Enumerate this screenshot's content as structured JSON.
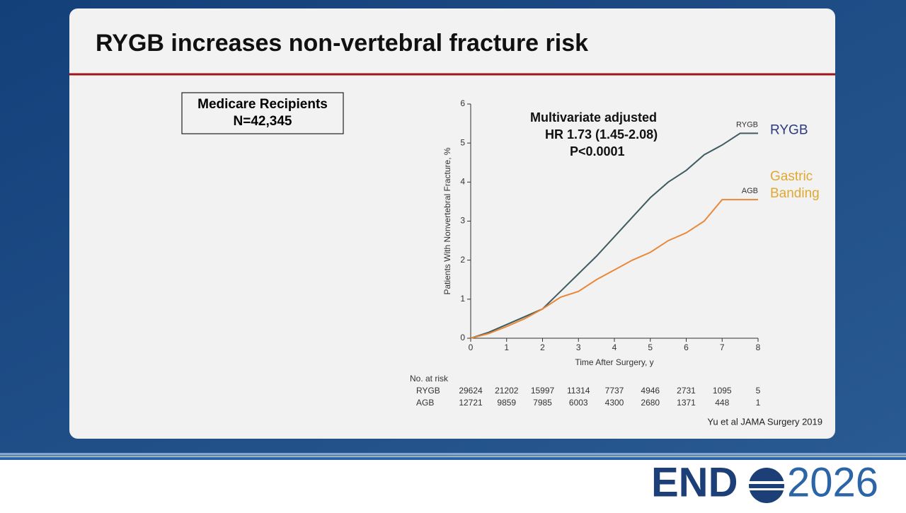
{
  "slide": {
    "title": "RYGB increases non-vertebral fracture risk",
    "box": [
      "Medicare Recipients",
      "N=42,345"
    ],
    "citation": "Yu et al JAMA Surgery 2019",
    "logo": {
      "left": "END",
      "right": "2026"
    }
  },
  "chart_data": {
    "type": "line",
    "x": [
      0,
      0.5,
      1,
      1.5,
      2,
      2.5,
      3,
      3.5,
      4,
      4.5,
      5,
      5.5,
      6,
      6.5,
      7,
      7.5,
      8
    ],
    "series": [
      {
        "name": "RYGB",
        "color": "#3f5c60",
        "values": [
          0,
          0.15,
          0.35,
          0.55,
          0.75,
          1.2,
          1.65,
          2.1,
          2.6,
          3.1,
          3.6,
          4.0,
          4.3,
          4.7,
          4.95,
          5.25,
          5.25
        ]
      },
      {
        "name": "AGB",
        "color": "#e8883a",
        "values": [
          0,
          0.12,
          0.3,
          0.5,
          0.75,
          1.05,
          1.2,
          1.5,
          1.75,
          2.0,
          2.2,
          2.5,
          2.7,
          3.0,
          3.55,
          3.55,
          3.55
        ]
      }
    ],
    "side_labels": [
      {
        "lines": [
          "RYGB"
        ],
        "color": "#2e3a7a"
      },
      {
        "lines": [
          "Gastric",
          "Banding"
        ],
        "color": "#e0a830"
      }
    ],
    "annotation": [
      "Multivariate adjusted",
      "HR 1.73 (1.45-2.08)",
      "P<0.0001"
    ],
    "xlabel": "Time After Surgery, y",
    "ylabel": "Patients With Nonvertebral Fracture, %",
    "xlim": [
      0,
      8
    ],
    "xticks": [
      0,
      1,
      2,
      3,
      4,
      5,
      6,
      7,
      8
    ],
    "ylim": [
      0,
      6
    ],
    "yticks": [
      0,
      1,
      2,
      3,
      4,
      5,
      6
    ],
    "grid": false,
    "risk_table": {
      "title": "No. at risk",
      "rows": [
        {
          "name": "RYGB",
          "values": [
            29624,
            21202,
            15997,
            11314,
            7737,
            4946,
            2731,
            1095,
            5
          ]
        },
        {
          "name": "AGB",
          "values": [
            12721,
            9859,
            7985,
            6003,
            4300,
            2680,
            1371,
            448,
            1
          ]
        }
      ]
    }
  }
}
